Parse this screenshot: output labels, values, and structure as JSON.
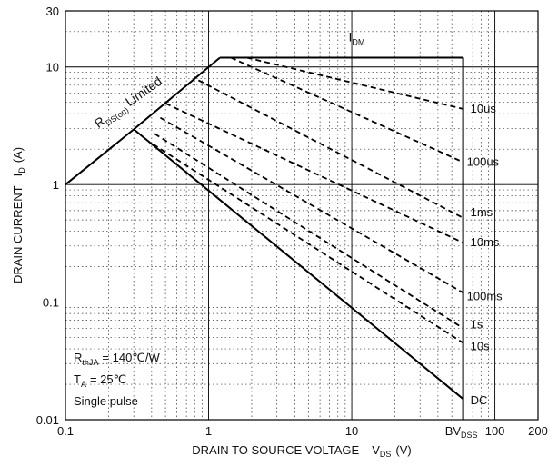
{
  "chart_data": {
    "type": "line",
    "x_scale": "log",
    "y_scale": "log",
    "xlim": [
      0.1,
      200
    ],
    "ylim": [
      0.01,
      30
    ],
    "grid": true,
    "x_ticks": [
      {
        "value": 0.1,
        "label": "0.1"
      },
      {
        "value": 1,
        "label": "1"
      },
      {
        "value": 10,
        "label": "10"
      },
      {
        "value": 100,
        "label": "100"
      },
      {
        "value": 200,
        "label": "200"
      }
    ],
    "y_ticks": [
      {
        "value": 0.01,
        "label": "0.01"
      },
      {
        "value": 0.1,
        "label": "0.1"
      },
      {
        "value": 1,
        "label": "1"
      },
      {
        "value": 10,
        "label": "10"
      },
      {
        "value": 30,
        "label": "30"
      }
    ],
    "xlabel": {
      "main": "DRAIN TO SOURCE VOLTAGE",
      "sym": "V",
      "sub": "DS",
      "unit": "(V)"
    },
    "ylabel": {
      "main": "DRAIN CURRENT",
      "sym": "I",
      "sub": "D",
      "unit": "(A)"
    },
    "bvdss": {
      "sym": "BV",
      "sub": "DSS",
      "value": 60
    },
    "idm": {
      "sym": "I",
      "sub": "DM",
      "value": 12
    },
    "rds_label": {
      "sym": "R",
      "sub": "DS(on)",
      "text": "Limited"
    },
    "conditions": {
      "rth": {
        "sym": "R",
        "sub": "thJA",
        "text": "= 140℃/W"
      },
      "ta": {
        "sym": "T",
        "sub": "A",
        "text": "= 25℃"
      },
      "pulse": "Single pulse"
    },
    "boundary": {
      "rds_limit": [
        [
          0.1,
          1.0
        ],
        [
          0.3,
          2.95
        ],
        [
          1.2,
          12
        ]
      ],
      "id_max": [
        [
          1.2,
          12
        ],
        [
          60,
          12
        ]
      ],
      "vds_max": [
        [
          60,
          12
        ],
        [
          60,
          0.01
        ]
      ]
    },
    "series": [
      {
        "name": "10us",
        "style": "dashed",
        "points": [
          [
            1.85,
            12
          ],
          [
            60,
            4.4
          ]
        ]
      },
      {
        "name": "100us",
        "style": "dashed",
        "points": [
          [
            1.43,
            12
          ],
          [
            60,
            1.55
          ]
        ]
      },
      {
        "name": "1ms",
        "style": "dashed",
        "points": [
          [
            0.85,
            7.7
          ],
          [
            60,
            0.52
          ]
        ]
      },
      {
        "name": "10ms",
        "style": "dashed",
        "points": [
          [
            0.5,
            4.9
          ],
          [
            60,
            0.32
          ]
        ]
      },
      {
        "name": "100ms",
        "style": "dashed",
        "points": [
          [
            0.46,
            3.7
          ],
          [
            60,
            0.12
          ]
        ]
      },
      {
        "name": "1s",
        "style": "dashed",
        "points": [
          [
            0.42,
            2.7
          ],
          [
            60,
            0.06
          ]
        ]
      },
      {
        "name": "10s",
        "style": "dashed",
        "points": [
          [
            0.41,
            2.2
          ],
          [
            60,
            0.045
          ]
        ]
      },
      {
        "name": "DC",
        "style": "solid",
        "points": [
          [
            0.3,
            2.95
          ],
          [
            60,
            0.015
          ]
        ]
      }
    ]
  }
}
